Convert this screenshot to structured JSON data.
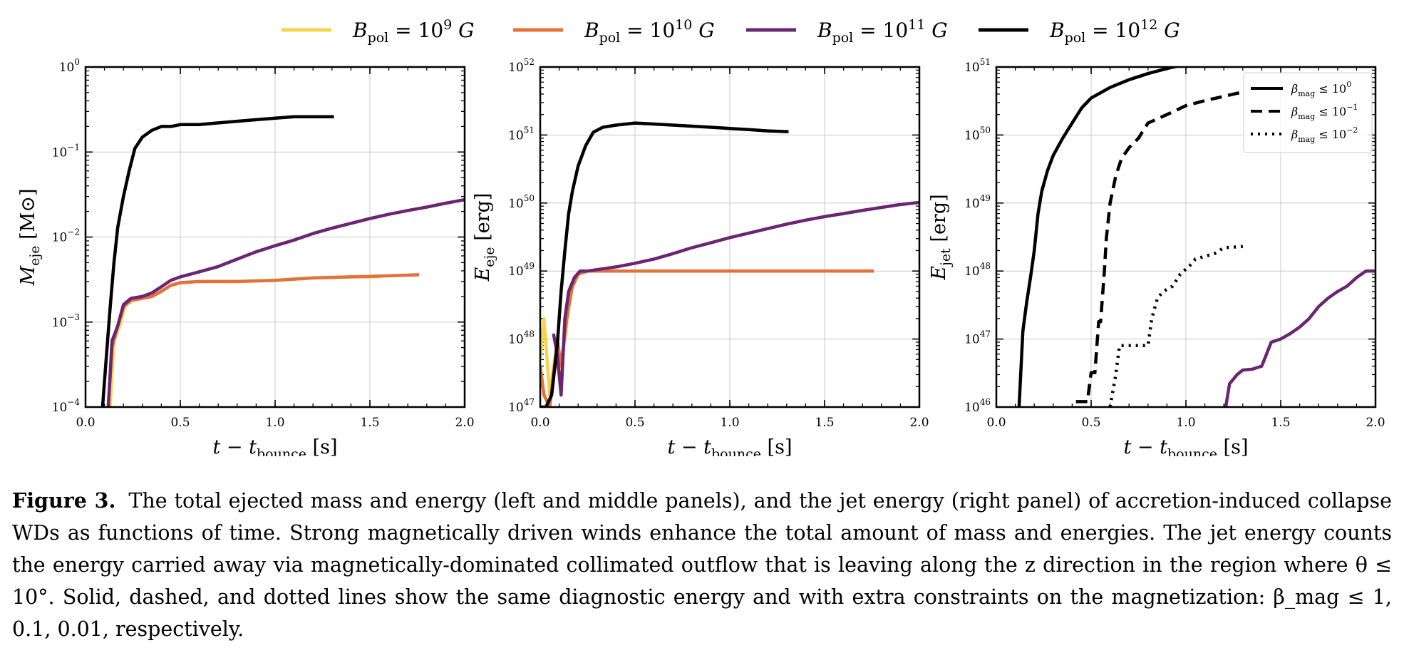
{
  "legend": {
    "entries": [
      {
        "label": "B_pol = 10^9 G",
        "base": "B",
        "sub": "pol",
        "mid": " = 10",
        "sup": "9",
        "tail": " G",
        "color": "#f6d54a"
      },
      {
        "label": "B_pol = 10^10 G",
        "base": "B",
        "sub": "pol",
        "mid": " = 10",
        "sup": "10",
        "tail": " G",
        "color": "#e4703a"
      },
      {
        "label": "B_pol = 10^11 G",
        "base": "B",
        "sub": "pol",
        "mid": " = 10",
        "sup": "11",
        "tail": " G",
        "color": "#6c2573"
      },
      {
        "label": "B_pol = 10^12 G",
        "base": "B",
        "sub": "pol",
        "mid": " = 10",
        "sup": "12",
        "tail": " G",
        "color": "#000000"
      }
    ]
  },
  "chart_data": [
    {
      "type": "line",
      "panel": "left",
      "xlabel": "t − t_bounce [s]",
      "xlabel_parts": {
        "main": "t − t",
        "sub": "bounce",
        "unit": " [s]"
      },
      "ylabel": "M_eje [M⊙]",
      "ylabel_parts": {
        "main": "M",
        "sub": "eje",
        "unit": " [M⊙]"
      },
      "xlim": [
        0.0,
        2.0
      ],
      "ylim": [
        0.0001,
        1
      ],
      "yscale": "log",
      "xticks": [
        0.0,
        0.5,
        1.0,
        1.5,
        2.0
      ],
      "xtick_labels": [
        "0.0",
        "0.5",
        "1.0",
        "1.5",
        "2.0"
      ],
      "yticks": [
        0.0001,
        0.001,
        0.01,
        0.1,
        1
      ],
      "ytick_labels": [
        {
          "base": "10",
          "exp": "−4"
        },
        {
          "base": "10",
          "exp": "−3"
        },
        {
          "base": "10",
          "exp": "−2"
        },
        {
          "base": "10",
          "exp": "−1"
        },
        {
          "base": "10",
          "exp": "0"
        }
      ],
      "grid": true,
      "series": [
        {
          "name": "B_pol = 10^9 G",
          "color": "#f6d54a",
          "style": "solid",
          "x": [
            0.13,
            0.15,
            0.18,
            0.21,
            0.25,
            0.3,
            0.35,
            0.4,
            0.45,
            0.5,
            0.6,
            0.8,
            1.0,
            1.2,
            1.4,
            1.55
          ],
          "y": [
            0.0001,
            0.0006,
            0.0009,
            0.0016,
            0.0018,
            0.0019,
            0.002,
            0.0023,
            0.0027,
            0.0029,
            0.003,
            0.003,
            0.0031,
            0.0033,
            0.0034,
            0.0034
          ]
        },
        {
          "name": "B_pol = 10^10 G",
          "color": "#e4703a",
          "style": "solid",
          "x": [
            0.12,
            0.14,
            0.17,
            0.2,
            0.24,
            0.3,
            0.35,
            0.4,
            0.45,
            0.5,
            0.6,
            0.8,
            1.0,
            1.2,
            1.4,
            1.6,
            1.76
          ],
          "y": [
            0.0001,
            0.0005,
            0.0009,
            0.0015,
            0.0018,
            0.0019,
            0.002,
            0.0023,
            0.0027,
            0.0029,
            0.003,
            0.003,
            0.0031,
            0.0033,
            0.0034,
            0.0035,
            0.0036
          ]
        },
        {
          "name": "B_pol = 10^11 G",
          "color": "#6c2573",
          "style": "solid",
          "x": [
            0.12,
            0.14,
            0.17,
            0.2,
            0.24,
            0.3,
            0.35,
            0.4,
            0.45,
            0.5,
            0.6,
            0.7,
            0.8,
            0.9,
            1.0,
            1.1,
            1.2,
            1.3,
            1.4,
            1.5,
            1.6,
            1.7,
            1.8,
            1.9,
            2.0
          ],
          "y": [
            0.0001,
            0.0006,
            0.0009,
            0.0016,
            0.0019,
            0.002,
            0.0022,
            0.0026,
            0.0031,
            0.0034,
            0.0039,
            0.0045,
            0.0055,
            0.0067,
            0.0079,
            0.0092,
            0.011,
            0.0127,
            0.0145,
            0.0165,
            0.0185,
            0.0205,
            0.0225,
            0.025,
            0.0275
          ]
        },
        {
          "name": "B_pol = 10^12 G",
          "color": "#000000",
          "style": "solid",
          "x": [
            0.09,
            0.11,
            0.13,
            0.15,
            0.17,
            0.2,
            0.23,
            0.26,
            0.3,
            0.35,
            0.4,
            0.45,
            0.5,
            0.6,
            0.7,
            0.8,
            0.9,
            1.0,
            1.1,
            1.2,
            1.31
          ],
          "y": [
            0.0001,
            0.0004,
            0.0015,
            0.005,
            0.013,
            0.03,
            0.06,
            0.11,
            0.15,
            0.18,
            0.2,
            0.2,
            0.21,
            0.21,
            0.22,
            0.23,
            0.24,
            0.25,
            0.26,
            0.26,
            0.26
          ]
        }
      ]
    },
    {
      "type": "line",
      "panel": "middle",
      "xlabel": "t − t_bounce [s]",
      "xlabel_parts": {
        "main": "t − t",
        "sub": "bounce",
        "unit": " [s]"
      },
      "ylabel": "E_eje [erg]",
      "ylabel_parts": {
        "main": "E",
        "sub": "eje",
        "unit": " [erg]"
      },
      "xlim": [
        0.0,
        2.0
      ],
      "ylim": [
        1e+47,
        1e+52
      ],
      "yscale": "log",
      "xticks": [
        0.0,
        0.5,
        1.0,
        1.5,
        2.0
      ],
      "xtick_labels": [
        "0.0",
        "0.5",
        "1.0",
        "1.5",
        "2.0"
      ],
      "yticks": [
        1e+47,
        1e+48,
        1e+49,
        1e+50,
        1e+51,
        1e+52
      ],
      "ytick_labels": [
        {
          "base": "10",
          "exp": "47"
        },
        {
          "base": "10",
          "exp": "48"
        },
        {
          "base": "10",
          "exp": "49"
        },
        {
          "base": "10",
          "exp": "50"
        },
        {
          "base": "10",
          "exp": "51"
        },
        {
          "base": "10",
          "exp": "52"
        }
      ],
      "grid": true,
      "series": [
        {
          "name": "B_pol = 10^9 G",
          "color": "#f6d54a",
          "style": "solid",
          "x": [
            0.0,
            0.02,
            0.05,
            0.08,
            0.1,
            0.13,
            0.16,
            0.2,
            0.25,
            0.3,
            0.5,
            0.8,
            1.0,
            1.2,
            1.4,
            1.55
          ],
          "y": [
            5e+47,
            2e+48,
            1.5e+47,
            6e+47,
            3e+47,
            1e+48,
            5e+48,
            9e+48,
            1e+49,
            1e+49,
            1e+49,
            1e+49,
            1e+49,
            1e+49,
            1e+49,
            1e+49
          ]
        },
        {
          "name": "B_pol = 10^10 G",
          "color": "#e4703a",
          "style": "solid",
          "x": [
            0.0,
            0.02,
            0.05,
            0.07,
            0.09,
            0.11,
            0.14,
            0.17,
            0.2,
            0.25,
            0.3,
            0.4,
            0.6,
            0.8,
            1.0,
            1.2,
            1.4,
            1.6,
            1.76
          ],
          "y": [
            4e+47,
            1.5e+47,
            1e+47,
            3e+47,
            1e+48,
            4e+47,
            2e+48,
            6e+48,
            9e+48,
            1e+49,
            1e+49,
            1e+49,
            1e+49,
            1e+49,
            1e+49,
            1e+49,
            1e+49,
            1e+49,
            1e+49
          ]
        },
        {
          "name": "B_pol = 10^11 G",
          "color": "#6c2573",
          "style": "solid",
          "x": [
            0.07,
            0.09,
            0.11,
            0.13,
            0.15,
            0.18,
            0.21,
            0.25,
            0.3,
            0.35,
            0.4,
            0.5,
            0.6,
            0.7,
            0.8,
            0.9,
            1.0,
            1.1,
            1.2,
            1.3,
            1.4,
            1.5,
            1.6,
            1.7,
            1.8,
            1.9,
            2.0
          ],
          "y": [
            1.2e+48,
            6e+47,
            1.5e+47,
            2e+48,
            5e+48,
            8e+48,
            1e+49,
            1e+49,
            1.05e+49,
            1.1e+49,
            1.15e+49,
            1.3e+49,
            1.5e+49,
            1.8e+49,
            2.2e+49,
            2.6e+49,
            3.1e+49,
            3.6e+49,
            4.2e+49,
            4.9e+49,
            5.6e+49,
            6.3e+49,
            7e+49,
            7.8e+49,
            8.6e+49,
            9.5e+49,
            1.02e+50
          ]
        },
        {
          "name": "B_pol = 10^12 G",
          "color": "#000000",
          "style": "solid",
          "x": [
            0.0,
            0.03,
            0.06,
            0.09,
            0.11,
            0.13,
            0.15,
            0.17,
            0.2,
            0.24,
            0.28,
            0.33,
            0.4,
            0.5,
            0.6,
            0.7,
            0.8,
            0.9,
            1.0,
            1.1,
            1.2,
            1.31
          ],
          "y": [
            1e+47,
            1e+47,
            1.5e+47,
            8e+47,
            5e+48,
            2e+49,
            7e+49,
            1.5e+50,
            3.5e+50,
            7e+50,
            1.1e+51,
            1.3e+51,
            1.4e+51,
            1.5e+51,
            1.45e+51,
            1.4e+51,
            1.35e+51,
            1.3e+51,
            1.25e+51,
            1.2e+51,
            1.15e+51,
            1.12e+51
          ]
        }
      ]
    },
    {
      "type": "line",
      "panel": "right",
      "xlabel": "t − t_bounce [s]",
      "xlabel_parts": {
        "main": "t − t",
        "sub": "bounce",
        "unit": " [s]"
      },
      "ylabel": "E_jet [erg]",
      "ylabel_parts": {
        "main": "E",
        "sub": "jet",
        "unit": " [erg]"
      },
      "xlim": [
        0.0,
        2.0
      ],
      "ylim": [
        1e+46,
        1e+51
      ],
      "yscale": "log",
      "xticks": [
        0.0,
        0.5,
        1.0,
        1.5,
        2.0
      ],
      "xtick_labels": [
        "0.0",
        "0.5",
        "1.0",
        "1.5",
        "2.0"
      ],
      "yticks": [
        1e+46,
        1e+47,
        1e+48,
        1e+49,
        1e+50,
        1e+51
      ],
      "ytick_labels": [
        {
          "base": "10",
          "exp": "46"
        },
        {
          "base": "10",
          "exp": "47"
        },
        {
          "base": "10",
          "exp": "48"
        },
        {
          "base": "10",
          "exp": "49"
        },
        {
          "base": "10",
          "exp": "50"
        },
        {
          "base": "10",
          "exp": "51"
        }
      ],
      "grid": true,
      "legend": {
        "placement": "top-right",
        "entries": [
          {
            "label": "β_mag ≤ 10^0",
            "base": "β",
            "sub": "mag",
            "mid": " ≤ 10",
            "sup": "0",
            "style": "solid"
          },
          {
            "label": "β_mag ≤ 10^−1",
            "base": "β",
            "sub": "mag",
            "mid": " ≤ 10",
            "sup": "−1",
            "style": "dashed"
          },
          {
            "label": "β_mag ≤ 10^−2",
            "base": "β",
            "sub": "mag",
            "mid": " ≤ 10",
            "sup": "−2",
            "style": "dotted"
          }
        ]
      },
      "series": [
        {
          "color": "#000000",
          "style": "solid",
          "x": [
            0.12,
            0.14,
            0.16,
            0.18,
            0.2,
            0.22,
            0.24,
            0.27,
            0.3,
            0.35,
            0.4,
            0.45,
            0.5,
            0.6,
            0.7,
            0.8,
            0.9,
            1.0,
            1.1,
            1.2,
            1.3
          ],
          "y": [
            1e+46,
            1.3e+47,
            3.5e+47,
            8e+47,
            2e+48,
            7e+48,
            1.5e+49,
            3e+49,
            5e+49,
            9e+49,
            1.5e+50,
            2.5e+50,
            3.5e+50,
            5e+50,
            6.5e+50,
            8e+50,
            9.5e+50,
            1.1e+51,
            1.25e+51,
            1.4e+51,
            1.6e+51
          ]
        },
        {
          "color": "#000000",
          "style": "dashed",
          "x": [
            0.42,
            0.48,
            0.5,
            0.52,
            0.54,
            0.55,
            0.57,
            0.58,
            0.6,
            0.63,
            0.66,
            0.7,
            0.75,
            0.8,
            0.9,
            1.0,
            1.1,
            1.2,
            1.3
          ],
          "y": [
            1.2e+46,
            1.2e+46,
            3.2e+46,
            3.2e+46,
            1.8e+47,
            1.8e+47,
            1e+48,
            3e+48,
            1e+49,
            2.5e+49,
            4.5e+49,
            6.5e+49,
            9e+49,
            1.5e+50,
            2e+50,
            2.7e+50,
            3.2e+50,
            3.7e+50,
            4.3e+50
          ]
        },
        {
          "color": "#000000",
          "style": "dotted",
          "x": [
            0.6,
            0.63,
            0.65,
            0.68,
            0.72,
            0.8,
            0.82,
            0.85,
            0.88,
            0.93,
            0.97,
            1.02,
            1.05,
            1.15,
            1.2,
            1.3
          ],
          "y": [
            1e+46,
            3e+46,
            8e+46,
            8e+46,
            8e+46,
            8e+46,
            2e+47,
            4e+47,
            5e+47,
            6e+47,
            9e+47,
            1.2e+48,
            1.5e+48,
            1.8e+48,
            2.2e+48,
            2.3e+48
          ]
        },
        {
          "color": "#6c2573",
          "style": "solid",
          "x": [
            1.21,
            1.23,
            1.27,
            1.3,
            1.35,
            1.4,
            1.45,
            1.5,
            1.55,
            1.6,
            1.65,
            1.7,
            1.75,
            1.8,
            1.85,
            1.9,
            1.95,
            2.0
          ],
          "y": [
            1e+46,
            2.2e+46,
            3e+46,
            3.5e+46,
            3.6e+46,
            4e+46,
            9e+46,
            1e+47,
            1.2e+47,
            1.5e+47,
            2e+47,
            3e+47,
            4e+47,
            5e+47,
            6e+47,
            8e+47,
            1e+48,
            1e+48
          ]
        }
      ]
    }
  ],
  "caption": {
    "label": "Figure 3.",
    "text": "The total ejected mass and energy (left and middle panels), and the jet energy (right panel) of accretion-induced collapse WDs as functions of time. Strong magnetically driven winds enhance the total amount of mass and energies. The jet energy counts the energy carried away via magnetically-dominated collimated outflow that is leaving along the z direction in the region where θ ≤ 10°. Solid, dashed, and dotted lines show the same diagnostic energy and with extra constraints on the magnetization: β_mag ≤ 1, 0.1, 0.01, respectively."
  }
}
